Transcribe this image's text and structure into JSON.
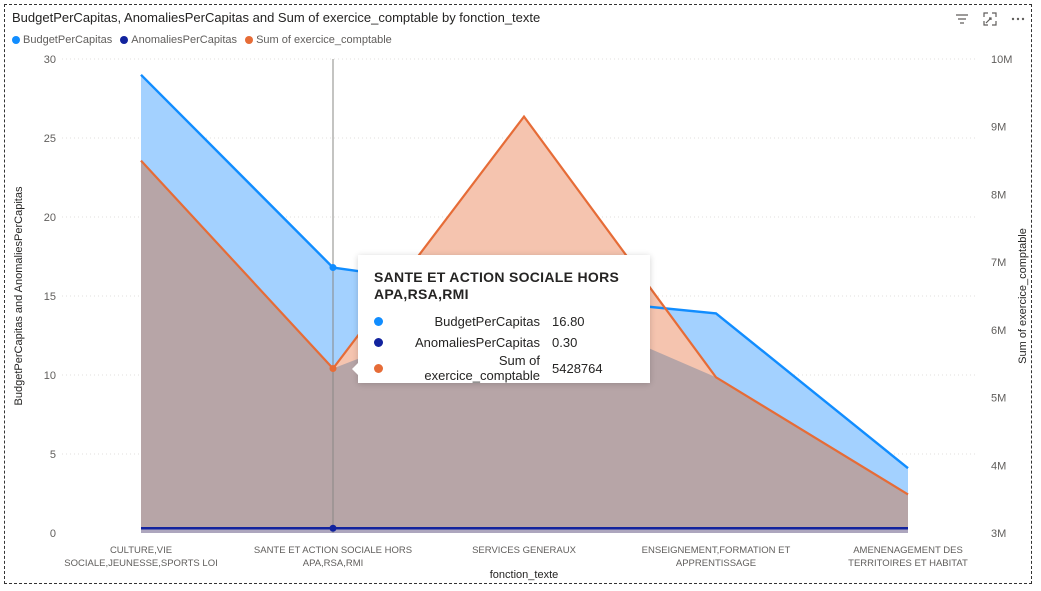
{
  "visual": {
    "title": "BudgetPerCapitas, AnomaliesPerCapitas and Sum of exercice_comptable by fonction_texte",
    "toolbar": {
      "filter_icon": "filter-icon",
      "focus_icon": "focus-mode-icon",
      "more_icon": "more-options-icon"
    }
  },
  "colors": {
    "budget": "#118DFF",
    "budget_fill": "#A3D1FF",
    "anomalies": "#12239E",
    "exercice": "#E66C37",
    "exercice_fill": "#F5C4AF",
    "overlap_fill": "#B7A5A7"
  },
  "chart_data": {
    "type": "area",
    "title": "BudgetPerCapitas, AnomaliesPerCapitas and Sum of exercice_comptable by fonction_texte",
    "xlabel": "fonction_texte",
    "ylabel": "BudgetPerCapitas and AnomaliesPerCapitas",
    "y2label": "Sum of exercice_comptable",
    "ylim": [
      0,
      30
    ],
    "y2lim": [
      3000000,
      10000000
    ],
    "yticks": [
      "0",
      "5",
      "10",
      "15",
      "20",
      "25",
      "30"
    ],
    "y2ticks": [
      "3M",
      "4M",
      "5M",
      "6M",
      "7M",
      "8M",
      "9M",
      "10M"
    ],
    "categories": [
      [
        "CULTURE,VIE",
        "SOCIALE,JEUNESSE,SPORTS LOI"
      ],
      [
        "SANTE ET ACTION SOCIALE HORS",
        "APA,RSA,RMI"
      ],
      [
        "SERVICES GENERAUX"
      ],
      [
        "ENSEIGNEMENT,FORMATION ET",
        "APPRENTISSAGE"
      ],
      [
        "AMENENAGEMENT DES",
        "TERRITOIRES ET HABITAT"
      ]
    ],
    "grid": true,
    "legend": "top-left",
    "series": [
      {
        "name": "BudgetPerCapitas",
        "axis": "left",
        "values": [
          29.0,
          16.8,
          15.1,
          13.9,
          4.1
        ]
      },
      {
        "name": "AnomaliesPerCapitas",
        "axis": "left",
        "values": [
          0.3,
          0.3,
          0.3,
          0.3,
          0.3
        ]
      },
      {
        "name": "Sum of exercice_comptable",
        "axis": "right",
        "values": [
          8500000,
          5428764,
          9150000,
          5300000,
          3570000
        ]
      }
    ]
  },
  "tooltip": {
    "category_line1": "SANTE ET ACTION SOCIALE HORS",
    "category_line2": "APA,RSA,RMI",
    "rows": [
      {
        "name": "BudgetPerCapitas",
        "value": "16.80"
      },
      {
        "name": "AnomaliesPerCapitas",
        "value": "0.30"
      },
      {
        "name": "Sum of exercice_comptable",
        "value": "5428764"
      }
    ]
  }
}
